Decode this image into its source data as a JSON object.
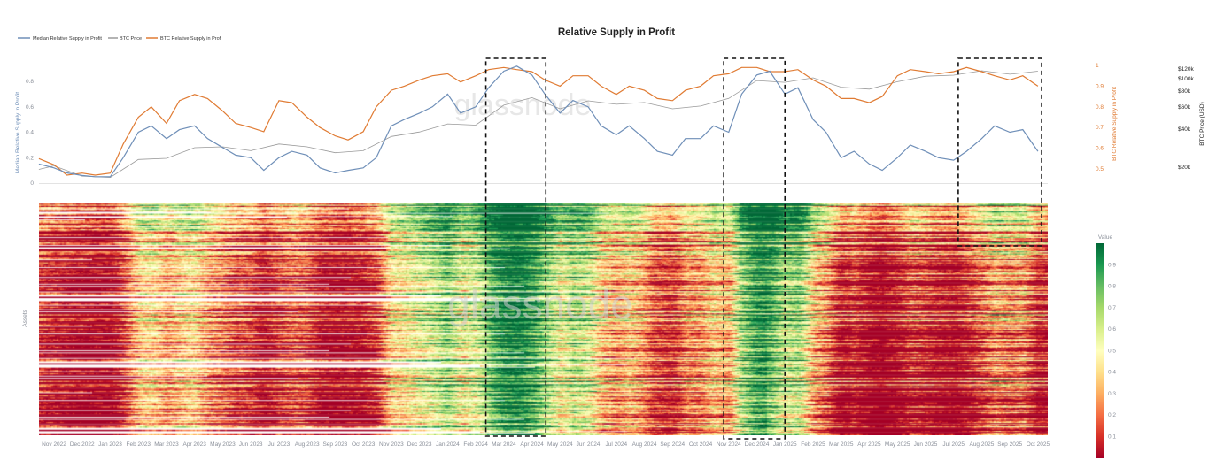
{
  "watermark": "glassnode",
  "chart_data": [
    {
      "type": "line",
      "title": "Relative Supply in Profit",
      "legend": {
        "placement": "top-left",
        "entries": [
          "Median Relative Supply in Profit",
          "BTC Price",
          "BTC Relative Supply in Prof"
        ]
      },
      "ylabel_left": "Median Relative Supply in Profit",
      "ylabel_right1": "BTC Relative Supply in Profit",
      "ylabel_right2": "BTC Price (USD)",
      "yticks_left": [
        "0",
        "0.2",
        "0.4",
        "0.6",
        "0.8"
      ],
      "yticks_right1": [
        "0.5",
        "0.6",
        "0.7",
        "0.8",
        "0.9",
        "1"
      ],
      "yticks_right2": [
        "$20k",
        "$40k",
        "$60k",
        "$80k",
        "$100k",
        "$120k"
      ],
      "ylim_left": [
        0,
        0.8
      ],
      "ylim_right1": [
        0.5,
        1
      ],
      "price_scale": "log",
      "grid": false,
      "colors": {
        "median": "#6f8fb8",
        "btc_price": "#9a9a9a",
        "btc_rsip": "#e07b33"
      },
      "series": [
        {
          "name": "Median Relative Supply in Profit",
          "axis": "left",
          "x": [
            "2022-10-15",
            "2022-11-01",
            "2022-11-15",
            "2022-12-01",
            "2022-12-15",
            "2023-01-01",
            "2023-01-15",
            "2023-02-01",
            "2023-02-15",
            "2023-03-01",
            "2023-03-15",
            "2023-04-01",
            "2023-04-15",
            "2023-05-01",
            "2023-05-15",
            "2023-06-01",
            "2023-06-15",
            "2023-07-01",
            "2023-07-15",
            "2023-08-01",
            "2023-08-15",
            "2023-09-01",
            "2023-09-15",
            "2023-10-01",
            "2023-10-15",
            "2023-11-01",
            "2023-11-15",
            "2023-12-01",
            "2023-12-15",
            "2024-01-01",
            "2024-01-15",
            "2024-02-01",
            "2024-02-15",
            "2024-03-01",
            "2024-03-15",
            "2024-04-01",
            "2024-04-15",
            "2024-05-01",
            "2024-05-15",
            "2024-06-01",
            "2024-06-15",
            "2024-07-01",
            "2024-07-15",
            "2024-08-01",
            "2024-08-15",
            "2024-09-01",
            "2024-09-15",
            "2024-10-01",
            "2024-10-15",
            "2024-11-01",
            "2024-11-15",
            "2024-12-01",
            "2024-12-15",
            "2025-01-01",
            "2025-01-15",
            "2025-02-01",
            "2025-02-15",
            "2025-03-01",
            "2025-03-15",
            "2025-04-01",
            "2025-04-15",
            "2025-05-01",
            "2025-05-15",
            "2025-06-01",
            "2025-06-15",
            "2025-07-01",
            "2025-07-15",
            "2025-08-01",
            "2025-08-15",
            "2025-09-01",
            "2025-09-15",
            "2025-10-01"
          ],
          "values": [
            0.15,
            0.12,
            0.08,
            0.06,
            0.05,
            0.05,
            0.2,
            0.4,
            0.45,
            0.35,
            0.42,
            0.45,
            0.35,
            0.28,
            0.22,
            0.2,
            0.1,
            0.2,
            0.25,
            0.22,
            0.12,
            0.08,
            0.1,
            0.12,
            0.2,
            0.45,
            0.5,
            0.55,
            0.6,
            0.7,
            0.55,
            0.6,
            0.75,
            0.88,
            0.92,
            0.85,
            0.7,
            0.55,
            0.65,
            0.6,
            0.45,
            0.38,
            0.45,
            0.35,
            0.25,
            0.22,
            0.35,
            0.35,
            0.45,
            0.4,
            0.7,
            0.85,
            0.88,
            0.7,
            0.75,
            0.5,
            0.4,
            0.2,
            0.25,
            0.15,
            0.1,
            0.2,
            0.3,
            0.25,
            0.2,
            0.18,
            0.25,
            0.35,
            0.45,
            0.4,
            0.42,
            0.25
          ]
        },
        {
          "name": "BTC Relative Supply in Prof",
          "axis": "right1",
          "values": [
            0.55,
            0.52,
            0.47,
            0.48,
            0.47,
            0.48,
            0.62,
            0.75,
            0.8,
            0.72,
            0.83,
            0.86,
            0.84,
            0.78,
            0.72,
            0.7,
            0.68,
            0.83,
            0.82,
            0.75,
            0.7,
            0.66,
            0.64,
            0.68,
            0.8,
            0.88,
            0.9,
            0.93,
            0.95,
            0.96,
            0.92,
            0.95,
            0.98,
            0.99,
            0.98,
            0.97,
            0.93,
            0.9,
            0.95,
            0.95,
            0.9,
            0.86,
            0.9,
            0.88,
            0.84,
            0.83,
            0.88,
            0.9,
            0.95,
            0.96,
            0.99,
            0.99,
            0.97,
            0.97,
            0.98,
            0.93,
            0.9,
            0.84,
            0.84,
            0.82,
            0.85,
            0.95,
            0.98,
            0.97,
            0.96,
            0.97,
            0.99,
            0.97,
            0.95,
            0.93,
            0.95,
            0.9
          ]
        },
        {
          "name": "BTC Price",
          "axis": "right2",
          "x": [
            "2022-10-15",
            "2022-11-01",
            "2022-12-01",
            "2023-01-01",
            "2023-02-01",
            "2023-03-01",
            "2023-04-01",
            "2023-05-01",
            "2023-06-01",
            "2023-07-01",
            "2023-08-01",
            "2023-09-01",
            "2023-10-01",
            "2023-11-01",
            "2023-12-01",
            "2024-01-01",
            "2024-02-01",
            "2024-03-01",
            "2024-04-01",
            "2024-05-01",
            "2024-06-01",
            "2024-07-01",
            "2024-08-01",
            "2024-09-01",
            "2024-10-01",
            "2024-11-01",
            "2024-12-01",
            "2025-01-01",
            "2025-02-01",
            "2025-03-01",
            "2025-04-01",
            "2025-05-01",
            "2025-06-01",
            "2025-07-01",
            "2025-08-01",
            "2025-09-01",
            "2025-10-01"
          ],
          "values": [
            19200,
            20500,
            17000,
            16600,
            23000,
            23500,
            28500,
            29000,
            27000,
            30500,
            29000,
            26000,
            27000,
            35000,
            38000,
            44000,
            43000,
            62000,
            71000,
            58000,
            67000,
            63000,
            65000,
            58000,
            61000,
            70000,
            97000,
            94000,
            102000,
            86000,
            83000,
            95000,
            105000,
            107000,
            116000,
            109000,
            115000
          ]
        }
      ],
      "xticks": [
        "Nov 2022",
        "Dec 2022",
        "Jan 2023",
        "Feb 2023",
        "Mar 2023",
        "Apr 2023",
        "May 2023",
        "Jun 2023",
        "Jul 2023",
        "Aug 2023",
        "Sep 2023",
        "Oct 2023",
        "Nov 2023",
        "Dec 2023",
        "Jan 2024",
        "Feb 2024",
        "Mar 2024",
        "Apr 2024",
        "May 2024",
        "Jun 2024",
        "Jul 2024",
        "Aug 2024",
        "Sep 2024",
        "Oct 2024",
        "Nov 2024",
        "Dec 2024",
        "Jan 2025",
        "Feb 2025",
        "Mar 2025",
        "Apr 2025",
        "May 2025",
        "Jun 2025",
        "Jul 2025",
        "Aug 2025",
        "Sep 2025",
        "Oct 2025"
      ],
      "highlight_ranges": [
        [
          "2024-02-12",
          "2024-04-16"
        ],
        [
          "2024-10-26",
          "2025-01-01"
        ],
        [
          "2025-07-06",
          "2025-10-05"
        ]
      ]
    },
    {
      "type": "heatmap",
      "ylabel": "Assets",
      "colorbar_title": "Value",
      "colorscale": "RdYlGn",
      "zlim": [
        0,
        1
      ],
      "colorbar_ticks": [
        "0.1",
        "0.2",
        "0.3",
        "0.4",
        "0.5",
        "0.6",
        "0.7",
        "0.8",
        "0.9"
      ]
    }
  ]
}
